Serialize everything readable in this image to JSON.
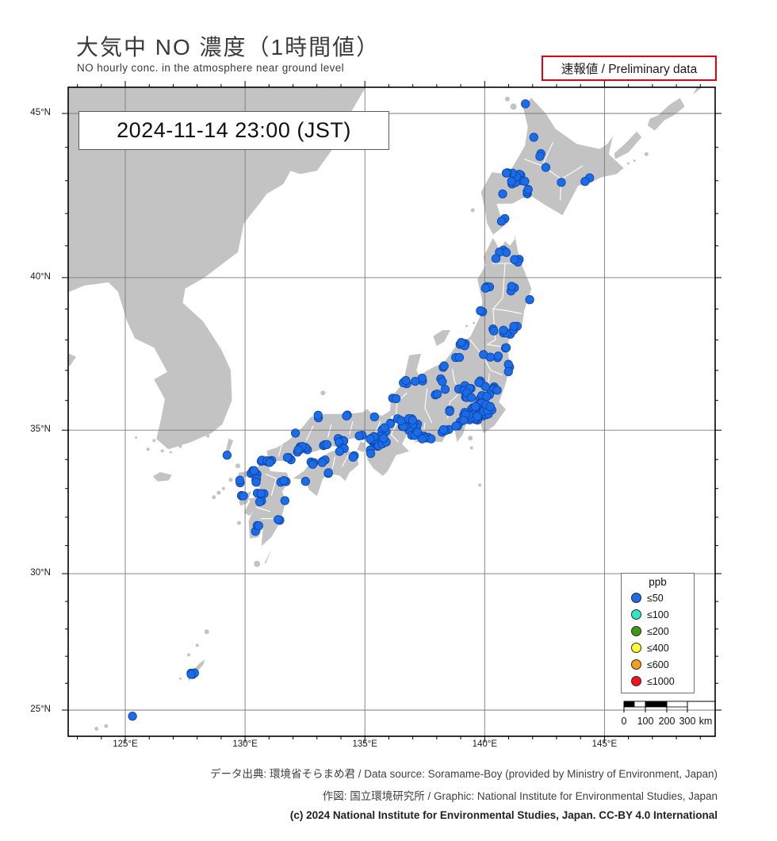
{
  "title": "大気中 NO 濃度（1時間値）",
  "subtitle": "NO hourly conc. in the atmosphere near ground level",
  "preliminary_badge": "速報値 / Preliminary data",
  "timestamp": "2024-11-14  23:00 (JST)",
  "axes": {
    "lat": [
      {
        "label": "45°N",
        "value": 45
      },
      {
        "label": "40°N",
        "value": 40
      },
      {
        "label": "35°N",
        "value": 35
      },
      {
        "label": "30°N",
        "value": 30
      },
      {
        "label": "25°N",
        "value": 25
      }
    ],
    "lon": [
      {
        "label": "125°E",
        "value": 125
      },
      {
        "label": "130°E",
        "value": 130
      },
      {
        "label": "135°E",
        "value": 135
      },
      {
        "label": "140°E",
        "value": 140
      },
      {
        "label": "145°E",
        "value": 145
      }
    ]
  },
  "legend": {
    "title": "ppb",
    "entries": [
      {
        "label": "≤50",
        "color": "#1f6be4"
      },
      {
        "label": "≤100",
        "color": "#2ee6c8"
      },
      {
        "label": "≤200",
        "color": "#3a9b10"
      },
      {
        "label": "≤400",
        "color": "#ffff33"
      },
      {
        "label": "≤600",
        "color": "#f59e1c"
      },
      {
        "label": "≤1000",
        "color": "#f2121f"
      }
    ]
  },
  "scalebar": {
    "tick_labels": [
      "0",
      "100",
      "200",
      "300"
    ],
    "unit_label": "km"
  },
  "footer": {
    "line1": "データ出典: 環境省そらまめ君 / Data source: Soramame-Boy (provided by Ministry of Environment, Japan)",
    "line2": "作図: 国立環境研究所 / Graphic: National Institute for Environmental Studies, Japan",
    "line3": "(c) 2024 National Institute for Environmental Studies, Japan. CC-BY 4.0 International"
  },
  "colors": {
    "land": "#c3c3c3",
    "sea": "#ffffff",
    "grid": "#7a7a7a",
    "frame": "#000000",
    "pref_border": "#ffffff",
    "station_fill": "#1b6ce6",
    "station_stroke": "#0d47ad",
    "badge_red": "#e60014"
  },
  "chart_data": {
    "type": "scatter-map",
    "parameter": "NO hourly concentration",
    "unit": "ppb",
    "time_shown": "2024-11-14 23:00 JST",
    "value_bins": [
      50,
      100,
      200,
      400,
      600,
      1000
    ],
    "observation": "all plotted stations fall in the ≤50 ppb bin (blue)",
    "lon_range": [
      122.6,
      149.6
    ],
    "lat_range": [
      24.0,
      45.8
    ],
    "station_clusters": [
      [
        141.7,
        45.28,
        1,
        0,
        0
      ],
      [
        142.35,
        43.77,
        2,
        0.12,
        0.08
      ],
      [
        142.05,
        44.3,
        1,
        0,
        0
      ],
      [
        142.55,
        43.4,
        1,
        0,
        0
      ],
      [
        141.35,
        43.06,
        9,
        0.33,
        0.17
      ],
      [
        141.0,
        43.2,
        2,
        0.18,
        0.04
      ],
      [
        141.6,
        42.66,
        3,
        0.22,
        0.08
      ],
      [
        140.8,
        41.82,
        2,
        0.13,
        0.06
      ],
      [
        140.75,
        42.6,
        1,
        0,
        0
      ],
      [
        144.35,
        43.03,
        2,
        0.18,
        0.07
      ],
      [
        143.2,
        42.95,
        1,
        0,
        0
      ],
      [
        140.75,
        40.82,
        3,
        0.18,
        0.07
      ],
      [
        141.35,
        40.55,
        3,
        0.15,
        0.09
      ],
      [
        140.47,
        40.6,
        1,
        0,
        0
      ],
      [
        140.12,
        39.72,
        3,
        0.13,
        0.09
      ],
      [
        141.15,
        39.65,
        3,
        0.1,
        0.14
      ],
      [
        141.88,
        39.3,
        1,
        0,
        0
      ],
      [
        139.88,
        38.92,
        2,
        0.1,
        0.07
      ],
      [
        140.35,
        38.3,
        2,
        0.09,
        0.09
      ],
      [
        141.0,
        38.32,
        7,
        0.22,
        0.14
      ],
      [
        141.28,
        38.44,
        2,
        0.1,
        0.05
      ],
      [
        140.9,
        37.76,
        2,
        0.09,
        0.05
      ],
      [
        140.4,
        37.42,
        3,
        0.18,
        0.09
      ],
      [
        139.95,
        37.52,
        1,
        0,
        0
      ],
      [
        141.0,
        37.05,
        3,
        0.1,
        0.18
      ],
      [
        140.5,
        36.4,
        4,
        0.18,
        0.14
      ],
      [
        139.9,
        36.56,
        4,
        0.22,
        0.11
      ],
      [
        139.15,
        36.4,
        5,
        0.28,
        0.11
      ],
      [
        139.5,
        36.16,
        6,
        0.32,
        0.1
      ],
      [
        140.0,
        36.1,
        4,
        0.22,
        0.11
      ],
      [
        139.7,
        35.76,
        16,
        0.28,
        0.17
      ],
      [
        139.95,
        35.56,
        8,
        0.22,
        0.14
      ],
      [
        140.25,
        35.8,
        4,
        0.22,
        0.14
      ],
      [
        139.55,
        35.42,
        9,
        0.22,
        0.11
      ],
      [
        139.3,
        35.56,
        5,
        0.18,
        0.09
      ],
      [
        139.05,
        35.27,
        2,
        0.09,
        0.07
      ],
      [
        138.6,
        35.66,
        2,
        0.1,
        0.07
      ],
      [
        138.2,
        36.65,
        2,
        0.09,
        0.09
      ],
      [
        137.97,
        36.25,
        2,
        0.09,
        0.07
      ],
      [
        138.35,
        36.37,
        1,
        0,
        0
      ],
      [
        139.1,
        37.9,
        4,
        0.18,
        0.09
      ],
      [
        138.85,
        37.45,
        2,
        0.1,
        0.07
      ],
      [
        138.25,
        37.12,
        2,
        0.1,
        0.05
      ],
      [
        137.25,
        36.7,
        3,
        0.18,
        0.07
      ],
      [
        136.66,
        36.58,
        3,
        0.13,
        0.09
      ],
      [
        136.22,
        36.06,
        2,
        0.09,
        0.09
      ],
      [
        138.4,
        34.99,
        4,
        0.18,
        0.07
      ],
      [
        138.88,
        35.1,
        2,
        0.09,
        0.07
      ],
      [
        137.75,
        34.73,
        4,
        0.18,
        0.07
      ],
      [
        137.4,
        34.76,
        3,
        0.13,
        0.07
      ],
      [
        137.0,
        35.12,
        10,
        0.22,
        0.14
      ],
      [
        136.88,
        35.4,
        3,
        0.13,
        0.09
      ],
      [
        137.08,
        34.87,
        3,
        0.13,
        0.07
      ],
      [
        136.6,
        35.0,
        3,
        0.1,
        0.14
      ],
      [
        136.45,
        35.32,
        2,
        0.09,
        0.07
      ],
      [
        136.1,
        35.2,
        2,
        0.09,
        0.09
      ],
      [
        135.76,
        35.02,
        4,
        0.13,
        0.07
      ],
      [
        135.5,
        34.7,
        12,
        0.18,
        0.11
      ],
      [
        135.27,
        34.73,
        6,
        0.18,
        0.07
      ],
      [
        135.62,
        34.48,
        3,
        0.13,
        0.09
      ],
      [
        135.8,
        34.66,
        2,
        0.09,
        0.07
      ],
      [
        135.2,
        34.26,
        2,
        0.09,
        0.07
      ],
      [
        134.86,
        34.8,
        2,
        0.13,
        0.07
      ],
      [
        135.4,
        35.45,
        1,
        0,
        0
      ],
      [
        133.95,
        34.62,
        5,
        0.22,
        0.11
      ],
      [
        133.37,
        34.5,
        3,
        0.13,
        0.07
      ],
      [
        132.5,
        34.42,
        6,
        0.22,
        0.11
      ],
      [
        132.22,
        34.3,
        2,
        0.1,
        0.07
      ],
      [
        131.8,
        34.06,
        3,
        0.18,
        0.07
      ],
      [
        131.02,
        34.0,
        3,
        0.13,
        0.07
      ],
      [
        134.2,
        35.5,
        2,
        0.1,
        0.05
      ],
      [
        133.07,
        35.46,
        2,
        0.1,
        0.05
      ],
      [
        132.1,
        34.9,
        1,
        0,
        0
      ],
      [
        134.05,
        34.33,
        3,
        0.13,
        0.07
      ],
      [
        134.56,
        34.08,
        2,
        0.09,
        0.07
      ],
      [
        133.3,
        33.95,
        3,
        0.18,
        0.07
      ],
      [
        132.78,
        33.84,
        3,
        0.1,
        0.09
      ],
      [
        133.56,
        33.57,
        2,
        0.1,
        0.05
      ],
      [
        132.52,
        33.25,
        1,
        0,
        0
      ],
      [
        130.85,
        33.9,
        6,
        0.18,
        0.09
      ],
      [
        130.45,
        33.6,
        6,
        0.22,
        0.11
      ],
      [
        130.52,
        33.3,
        3,
        0.18,
        0.09
      ],
      [
        129.85,
        33.25,
        2,
        0.09,
        0.09
      ],
      [
        129.9,
        32.76,
        3,
        0.1,
        0.07
      ],
      [
        130.65,
        32.8,
        4,
        0.18,
        0.09
      ],
      [
        130.6,
        32.5,
        2,
        0.09,
        0.07
      ],
      [
        131.6,
        33.25,
        3,
        0.13,
        0.07
      ],
      [
        131.66,
        32.58,
        1,
        0,
        0
      ],
      [
        131.43,
        31.9,
        2,
        0.09,
        0.07
      ],
      [
        130.55,
        31.6,
        3,
        0.13,
        0.11
      ],
      [
        129.25,
        34.15,
        1,
        0,
        0
      ],
      [
        127.8,
        26.3,
        4,
        0.12,
        0.1
      ],
      [
        125.3,
        24.77,
        1,
        0,
        0
      ]
    ]
  }
}
